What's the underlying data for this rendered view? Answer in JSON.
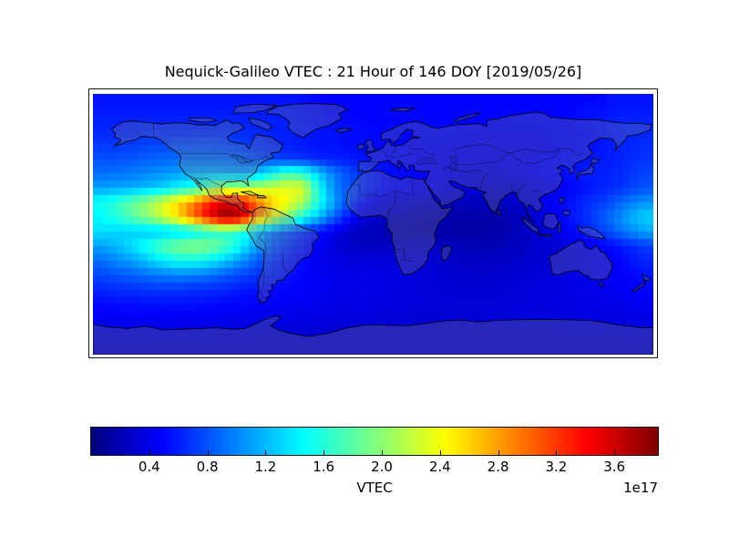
{
  "title": "Nequick-Galileo VTEC : 21 Hour of 146 DOY [2019/05/26]",
  "chart_data": {
    "type": "heatmap",
    "title": "Nequick-Galileo VTEC : 21 Hour of 146 DOY [2019/05/26]",
    "projection": "equirectangular-world-map",
    "lon_range": [
      -180,
      180
    ],
    "lat_range": [
      -90,
      90
    ],
    "grid": {
      "lon_start": -175,
      "lon_step": 10,
      "cols": 36,
      "lat_start": 85,
      "lat_step": -10,
      "rows": 18
    },
    "units_multiplier": "1e17",
    "colormap": "jet",
    "vmin": 0.0,
    "vmax": 3.9,
    "peak": {
      "lon": -95,
      "lat": 10,
      "value": 3.85
    },
    "colorbar": {
      "label": "VTEC",
      "offset_text": "1e17",
      "ticks": [
        0.4,
        0.8,
        1.2,
        1.6,
        2.0,
        2.4,
        2.8,
        3.2,
        3.6
      ],
      "tick_labels": [
        "0.4",
        "0.8",
        "1.2",
        "1.6",
        "2.0",
        "2.4",
        "2.8",
        "3.2",
        "3.6"
      ]
    },
    "values": [
      [
        0.55,
        0.55,
        0.55,
        0.55,
        0.55,
        0.55,
        0.55,
        0.55,
        0.55,
        0.55,
        0.55,
        0.55,
        0.55,
        0.55,
        0.5,
        0.5,
        0.5,
        0.5,
        0.5,
        0.5,
        0.5,
        0.5,
        0.5,
        0.5,
        0.5,
        0.5,
        0.5,
        0.5,
        0.5,
        0.5,
        0.5,
        0.5,
        0.5,
        0.55,
        0.55,
        0.55
      ],
      [
        0.6,
        0.6,
        0.6,
        0.6,
        0.6,
        0.6,
        0.6,
        0.6,
        0.6,
        0.6,
        0.6,
        0.6,
        0.6,
        0.55,
        0.55,
        0.5,
        0.5,
        0.5,
        0.5,
        0.5,
        0.5,
        0.5,
        0.5,
        0.5,
        0.5,
        0.5,
        0.5,
        0.5,
        0.5,
        0.5,
        0.5,
        0.55,
        0.55,
        0.6,
        0.6,
        0.6
      ],
      [
        0.62,
        0.62,
        0.62,
        0.65,
        0.65,
        0.65,
        0.65,
        0.65,
        0.65,
        0.65,
        0.62,
        0.6,
        0.6,
        0.58,
        0.55,
        0.55,
        0.52,
        0.52,
        0.5,
        0.5,
        0.5,
        0.5,
        0.5,
        0.5,
        0.48,
        0.48,
        0.48,
        0.48,
        0.48,
        0.5,
        0.5,
        0.52,
        0.55,
        0.6,
        0.62,
        0.62
      ],
      [
        0.7,
        0.7,
        0.72,
        0.75,
        0.75,
        0.78,
        0.78,
        0.78,
        0.75,
        0.72,
        0.68,
        0.62,
        0.6,
        0.58,
        0.55,
        0.55,
        0.52,
        0.52,
        0.5,
        0.5,
        0.48,
        0.48,
        0.48,
        0.45,
        0.45,
        0.45,
        0.45,
        0.45,
        0.45,
        0.48,
        0.5,
        0.52,
        0.55,
        0.6,
        0.62,
        0.65
      ],
      [
        0.8,
        0.8,
        0.82,
        0.85,
        0.88,
        0.9,
        0.92,
        0.92,
        0.9,
        0.88,
        0.8,
        0.75,
        0.7,
        0.68,
        0.62,
        0.6,
        0.58,
        0.55,
        0.52,
        0.5,
        0.5,
        0.48,
        0.45,
        0.45,
        0.45,
        0.42,
        0.45,
        0.45,
        0.48,
        0.5,
        0.52,
        0.55,
        0.58,
        0.6,
        0.65,
        0.68
      ],
      [
        0.9,
        0.92,
        0.95,
        1.0,
        1.05,
        1.1,
        1.15,
        1.15,
        1.15,
        1.1,
        1.2,
        1.45,
        1.7,
        1.6,
        1.25,
        0.95,
        0.78,
        0.62,
        0.55,
        0.52,
        0.5,
        0.48,
        0.45,
        0.42,
        0.4,
        0.38,
        0.4,
        0.45,
        0.48,
        0.52,
        0.55,
        0.58,
        0.6,
        0.62,
        0.68,
        0.75
      ],
      [
        1.1,
        1.12,
        1.15,
        1.2,
        1.3,
        1.45,
        1.55,
        1.9,
        2.1,
        2.1,
        2.15,
        2.25,
        2.35,
        2.3,
        1.5,
        1.0,
        0.8,
        0.65,
        0.55,
        0.5,
        0.48,
        0.45,
        0.42,
        0.38,
        0.35,
        0.32,
        0.32,
        0.35,
        0.38,
        0.42,
        0.48,
        0.55,
        0.6,
        0.65,
        0.72,
        0.8
      ],
      [
        1.5,
        1.65,
        1.85,
        2.05,
        2.3,
        2.6,
        2.95,
        3.3,
        3.6,
        3.45,
        3.05,
        2.65,
        2.4,
        2.1,
        1.55,
        1.1,
        0.75,
        0.5,
        0.4,
        0.35,
        0.32,
        0.3,
        0.28,
        0.25,
        0.22,
        0.22,
        0.25,
        0.3,
        0.38,
        0.45,
        0.55,
        0.62,
        0.7,
        0.82,
        0.95,
        1.05
      ],
      [
        1.45,
        1.6,
        1.8,
        2.0,
        2.25,
        2.6,
        3.05,
        3.5,
        3.85,
        3.7,
        3.0,
        2.45,
        1.95,
        1.55,
        1.2,
        0.85,
        0.55,
        0.35,
        0.28,
        0.25,
        0.22,
        0.2,
        0.18,
        0.15,
        0.15,
        0.15,
        0.18,
        0.25,
        0.32,
        0.42,
        0.55,
        0.65,
        0.78,
        0.95,
        1.15,
        1.3
      ],
      [
        1.35,
        1.3,
        1.28,
        1.25,
        1.25,
        1.3,
        1.4,
        1.55,
        1.65,
        1.55,
        1.25,
        0.95,
        0.8,
        0.68,
        0.55,
        0.4,
        0.28,
        0.22,
        0.2,
        0.18,
        0.18,
        0.16,
        0.15,
        0.14,
        0.14,
        0.15,
        0.18,
        0.25,
        0.3,
        0.38,
        0.48,
        0.58,
        0.7,
        0.85,
        1.0,
        1.12
      ],
      [
        1.1,
        1.2,
        1.35,
        1.55,
        1.8,
        1.95,
        2.0,
        1.95,
        1.75,
        1.45,
        1.12,
        0.85,
        0.7,
        0.58,
        0.45,
        0.35,
        0.28,
        0.25,
        0.25,
        0.28,
        0.3,
        0.28,
        0.25,
        0.22,
        0.2,
        0.2,
        0.22,
        0.25,
        0.3,
        0.32,
        0.35,
        0.4,
        0.45,
        0.52,
        0.62,
        0.72
      ],
      [
        0.9,
        1.0,
        1.1,
        1.25,
        1.4,
        1.5,
        1.5,
        1.42,
        1.25,
        1.05,
        0.85,
        0.68,
        0.58,
        0.5,
        0.42,
        0.38,
        0.35,
        0.35,
        0.35,
        0.35,
        0.35,
        0.32,
        0.3,
        0.28,
        0.26,
        0.26,
        0.28,
        0.3,
        0.3,
        0.32,
        0.35,
        0.38,
        0.42,
        0.48,
        0.55,
        0.62
      ],
      [
        0.75,
        0.8,
        0.85,
        0.9,
        0.95,
        0.98,
        0.95,
        0.9,
        0.82,
        0.75,
        0.68,
        0.6,
        0.55,
        0.5,
        0.45,
        0.42,
        0.4,
        0.4,
        0.38,
        0.38,
        0.36,
        0.34,
        0.32,
        0.3,
        0.3,
        0.3,
        0.32,
        0.32,
        0.34,
        0.35,
        0.38,
        0.4,
        0.42,
        0.45,
        0.5,
        0.55
      ],
      [
        0.62,
        0.65,
        0.66,
        0.68,
        0.68,
        0.68,
        0.66,
        0.64,
        0.62,
        0.58,
        0.55,
        0.52,
        0.5,
        0.48,
        0.45,
        0.42,
        0.4,
        0.4,
        0.38,
        0.36,
        0.35,
        0.34,
        0.33,
        0.32,
        0.32,
        0.32,
        0.33,
        0.34,
        0.35,
        0.36,
        0.38,
        0.4,
        0.42,
        0.44,
        0.46,
        0.5
      ],
      [
        0.52,
        0.53,
        0.54,
        0.55,
        0.55,
        0.55,
        0.54,
        0.53,
        0.52,
        0.5,
        0.48,
        0.46,
        0.45,
        0.44,
        0.42,
        0.4,
        0.4,
        0.38,
        0.38,
        0.36,
        0.35,
        0.35,
        0.34,
        0.34,
        0.34,
        0.34,
        0.35,
        0.35,
        0.36,
        0.36,
        0.38,
        0.38,
        0.4,
        0.4,
        0.42,
        0.44
      ],
      [
        0.45,
        0.45,
        0.45,
        0.45,
        0.45,
        0.44,
        0.44,
        0.43,
        0.42,
        0.42,
        0.4,
        0.4,
        0.4,
        0.38,
        0.38,
        0.36,
        0.35,
        0.35,
        0.34,
        0.34,
        0.33,
        0.33,
        0.33,
        0.33,
        0.33,
        0.34,
        0.34,
        0.35,
        0.35,
        0.35,
        0.36,
        0.36,
        0.37,
        0.37,
        0.38,
        0.38
      ],
      [
        0.36,
        0.36,
        0.36,
        0.36,
        0.35,
        0.35,
        0.35,
        0.35,
        0.34,
        0.34,
        0.34,
        0.33,
        0.33,
        0.33,
        0.32,
        0.32,
        0.32,
        0.32,
        0.32,
        0.32,
        0.31,
        0.31,
        0.31,
        0.31,
        0.31,
        0.31,
        0.32,
        0.32,
        0.32,
        0.32,
        0.33,
        0.33,
        0.33,
        0.34,
        0.34,
        0.34
      ],
      [
        0.3,
        0.3,
        0.3,
        0.3,
        0.3,
        0.3,
        0.3,
        0.3,
        0.3,
        0.3,
        0.3,
        0.3,
        0.3,
        0.3,
        0.3,
        0.3,
        0.3,
        0.3,
        0.3,
        0.3,
        0.3,
        0.3,
        0.3,
        0.3,
        0.3,
        0.3,
        0.3,
        0.3,
        0.3,
        0.3,
        0.3,
        0.3,
        0.3,
        0.3,
        0.3,
        0.3
      ]
    ]
  }
}
